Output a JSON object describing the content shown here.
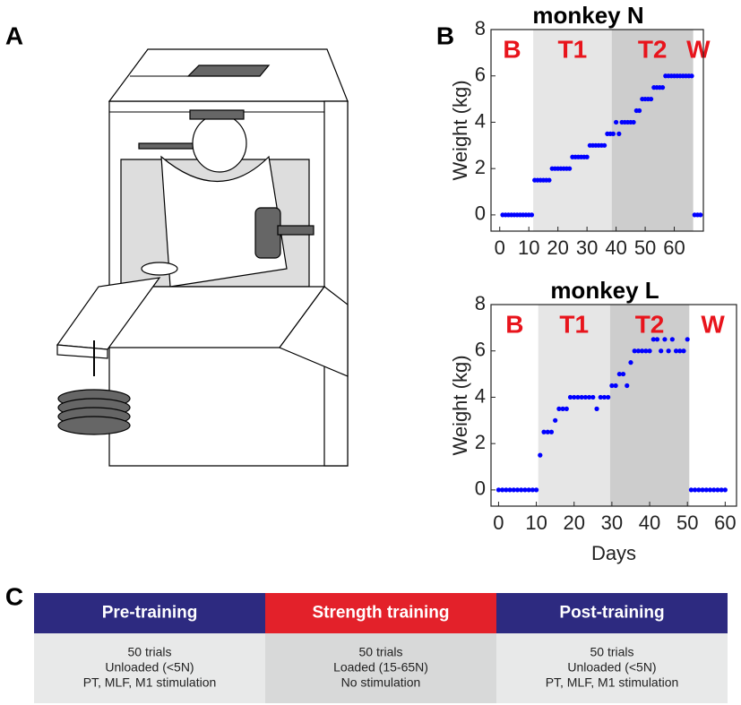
{
  "panel_labels": [
    "A",
    "B",
    "C"
  ],
  "chart_data": [
    {
      "type": "scatter",
      "title": "monkey N",
      "y_label": "Weight (kg)",
      "color": "#0000ff",
      "xlim": [
        -3,
        70
      ],
      "xticks": [
        0,
        10,
        20,
        30,
        40,
        50,
        60
      ],
      "ylim": [
        -0.7,
        8
      ],
      "yticks": [
        0,
        2,
        4,
        6,
        8
      ],
      "phases": [
        {
          "label": "B"
        },
        {
          "label": "T1",
          "start": 11.5,
          "end": 38.5,
          "color": "#e6e6e6"
        },
        {
          "label": "T2",
          "start": 38.5,
          "end": 66.5,
          "color": "#cdcdcd"
        },
        {
          "label": "W"
        }
      ],
      "x": [
        1,
        2,
        3,
        4,
        5,
        6,
        7,
        8,
        9,
        10,
        11,
        12,
        13,
        14,
        15,
        16,
        17,
        18,
        19,
        20,
        21,
        22,
        23,
        24,
        25,
        26,
        27,
        28,
        29,
        30,
        31,
        32,
        33,
        34,
        35,
        36,
        37,
        38,
        39,
        40,
        41,
        42,
        43,
        44,
        45,
        46,
        47,
        48,
        49,
        50,
        51,
        52,
        53,
        54,
        55,
        56,
        57,
        58,
        59,
        60,
        61,
        62,
        63,
        64,
        65,
        66,
        67,
        68,
        69
      ],
      "values": [
        0,
        0,
        0,
        0,
        0,
        0,
        0,
        0,
        0,
        0,
        0,
        1.5,
        1.5,
        1.5,
        1.5,
        1.5,
        1.5,
        2,
        2,
        2,
        2,
        2,
        2,
        2,
        2.5,
        2.5,
        2.5,
        2.5,
        2.5,
        2.5,
        3,
        3,
        3,
        3,
        3,
        3,
        3.5,
        3.5,
        3.5,
        4,
        3.5,
        4,
        4,
        4,
        4,
        4,
        4.5,
        4.5,
        5,
        5,
        5,
        5,
        5.5,
        5.5,
        5.5,
        5.5,
        6,
        6,
        6,
        6,
        6,
        6,
        6,
        6,
        6,
        6,
        0,
        0,
        0
      ]
    },
    {
      "type": "scatter",
      "title": "monkey L",
      "y_label": "Weight (kg)",
      "x_label": "Days",
      "color": "#0000ff",
      "xlim": [
        -2,
        63
      ],
      "xticks": [
        0,
        10,
        20,
        30,
        40,
        50,
        60
      ],
      "ylim": [
        -0.7,
        8
      ],
      "yticks": [
        0,
        2,
        4,
        6,
        8
      ],
      "phases": [
        {
          "label": "B"
        },
        {
          "label": "T1",
          "start": 10.5,
          "end": 29.5,
          "color": "#e6e6e6"
        },
        {
          "label": "T2",
          "start": 29.5,
          "end": 50.5,
          "color": "#cdcdcd"
        },
        {
          "label": "W"
        }
      ],
      "x": [
        0,
        1,
        2,
        3,
        4,
        5,
        6,
        7,
        8,
        9,
        10,
        11,
        12,
        13,
        14,
        15,
        16,
        17,
        18,
        19,
        20,
        21,
        22,
        23,
        24,
        25,
        26,
        27,
        28,
        29,
        30,
        31,
        32,
        33,
        34,
        35,
        36,
        37,
        38,
        39,
        40,
        41,
        42,
        43,
        44,
        45,
        46,
        47,
        48,
        49,
        50,
        51,
        52,
        53,
        54,
        55,
        56,
        57,
        58,
        59,
        60
      ],
      "values": [
        0,
        0,
        0,
        0,
        0,
        0,
        0,
        0,
        0,
        0,
        0,
        1.5,
        2.5,
        2.5,
        2.5,
        3,
        3.5,
        3.5,
        3.5,
        4,
        4,
        4,
        4,
        4,
        4,
        4,
        3.5,
        4,
        4,
        4,
        4.5,
        4.5,
        5,
        5,
        4.5,
        5.5,
        6,
        6,
        6,
        6,
        6,
        6.5,
        6.5,
        6,
        6.5,
        6,
        6.5,
        6,
        6,
        6,
        6.5,
        0,
        0,
        0,
        0,
        0,
        0,
        0,
        0,
        0,
        0
      ]
    }
  ],
  "table": {
    "headers": [
      "Pre-training",
      "Strength training",
      "Post-training"
    ],
    "cells": [
      [
        "50 trials",
        "Unloaded (<5N)",
        "PT, MLF, M1 stimulation"
      ],
      [
        "50 trials",
        "Loaded (15-65N)",
        "No stimulation"
      ],
      [
        "50 trials",
        "Unloaded (<5N)",
        "PT, MLF, M1 stimulation"
      ]
    ]
  }
}
